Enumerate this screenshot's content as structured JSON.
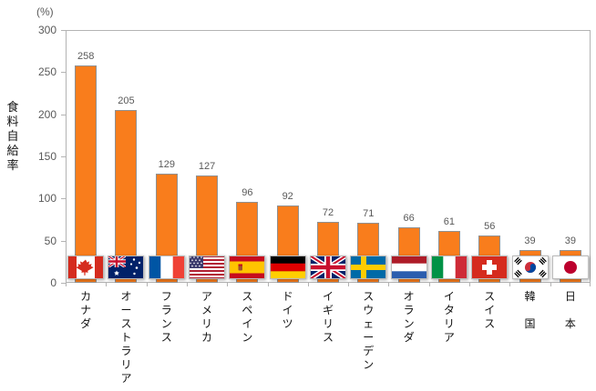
{
  "chart_data": {
    "type": "bar",
    "unit_label": "(%)",
    "ylabel": "食料自給率",
    "ylim": [
      0,
      300
    ],
    "yticks": [
      0,
      50,
      100,
      150,
      200,
      250,
      300
    ],
    "grid": false,
    "legend": false,
    "value_labels_shown": true,
    "categories": [
      "カナダ",
      "オーストラリア",
      "フランス",
      "アメリカ",
      "スペイン",
      "ドイツ",
      "イギリス",
      "スウェーデン",
      "オランダ",
      "イタリア",
      "スイス",
      "韓　国",
      "日　本"
    ],
    "values": [
      258,
      205,
      129,
      127,
      96,
      92,
      72,
      71,
      66,
      61,
      56,
      39,
      39
    ],
    "flags": [
      "canada",
      "australia",
      "france",
      "usa",
      "spain",
      "germany",
      "uk",
      "sweden",
      "netherlands",
      "italy",
      "switzerland",
      "south-korea",
      "japan"
    ],
    "bar_color": "#F97D1C",
    "bar_border_color": "#909090",
    "axis_color": "#B3B3B3",
    "value_label_color": "#595959",
    "tick_label_color": "#595959",
    "category_label_color": "#111111"
  }
}
